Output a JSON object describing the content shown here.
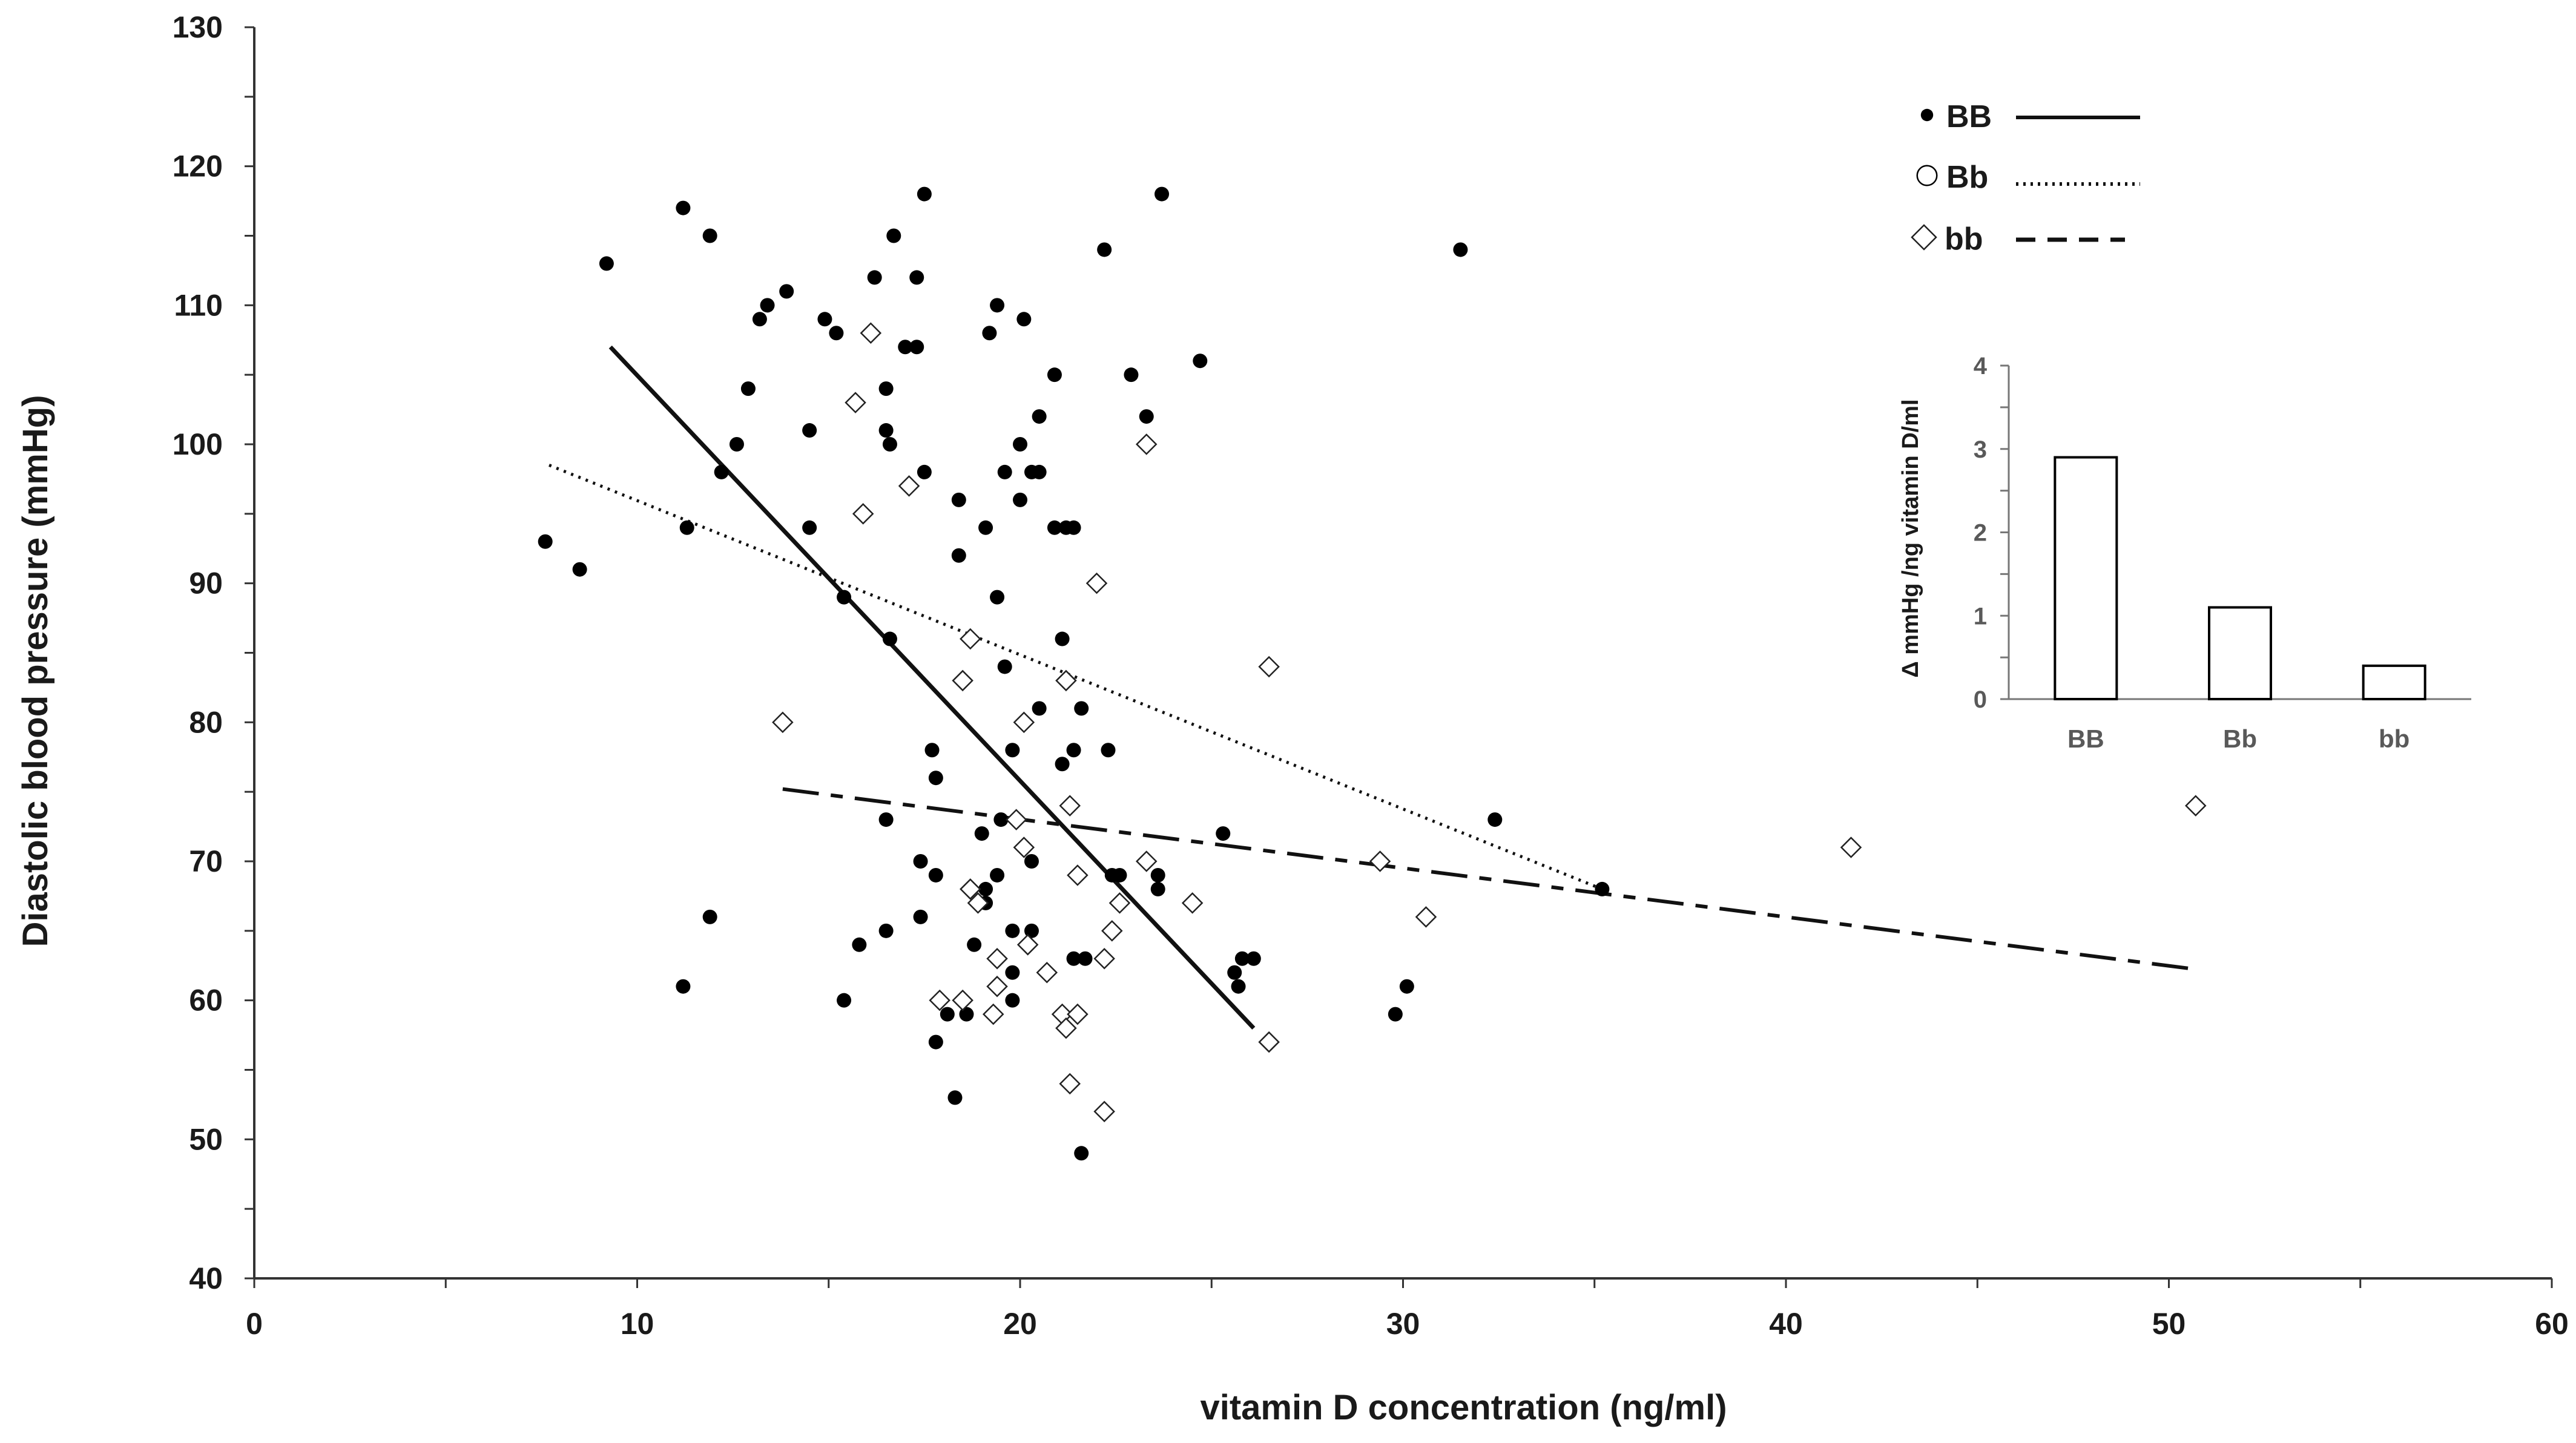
{
  "chart_data": [
    {
      "type": "scatter",
      "title": "",
      "xlabel": "vitamin D concentration (ng/ml)",
      "ylabel": "Diastolic blood pressure (mmHg)",
      "xlim": [
        0,
        60
      ],
      "ylim": [
        40,
        130
      ],
      "xticks": [
        0,
        10,
        20,
        30,
        40,
        50,
        60
      ],
      "xtick_labels": [
        "0",
        "10",
        "20",
        "30",
        "40",
        "50",
        "60"
      ],
      "yticks": [
        40,
        50,
        60,
        70,
        80,
        90,
        100,
        110,
        120,
        130
      ],
      "ytick_labels": [
        "40",
        "50",
        "60",
        "70",
        "80",
        "90",
        "100",
        "110",
        "120",
        "130"
      ],
      "grid": false,
      "legend": {
        "position": "top-right",
        "entries": [
          {
            "label": "BB",
            "marker": "filled-circle",
            "line": "solid"
          },
          {
            "label": "Bb",
            "marker": "open-circle",
            "line": "dotted"
          },
          {
            "label": "bb",
            "marker": "open-diamond",
            "line": "dashed"
          }
        ]
      },
      "series": [
        {
          "name": "BB",
          "marker": "filled-circle",
          "points": [
            [
              7.6,
              93
            ],
            [
              8.5,
              91
            ],
            [
              9.2,
              113
            ],
            [
              11.2,
              117
            ],
            [
              11.3,
              94
            ],
            [
              11.2,
              61
            ],
            [
              11.9,
              115
            ],
            [
              11.9,
              66
            ],
            [
              12.2,
              98
            ],
            [
              12.6,
              100
            ],
            [
              12.9,
              104
            ],
            [
              13.2,
              109
            ],
            [
              13.4,
              110
            ],
            [
              13.9,
              111
            ],
            [
              14.5,
              101
            ],
            [
              14.5,
              94
            ],
            [
              14.9,
              109
            ],
            [
              15.2,
              108
            ],
            [
              15.4,
              89
            ],
            [
              15.4,
              60
            ],
            [
              15.8,
              64
            ],
            [
              16.2,
              112
            ],
            [
              16.5,
              104
            ],
            [
              16.5,
              101
            ],
            [
              16.6,
              100
            ],
            [
              16.6,
              86
            ],
            [
              16.5,
              73
            ],
            [
              16.5,
              65
            ],
            [
              16.7,
              115
            ],
            [
              17.0,
              107
            ],
            [
              17.3,
              107
            ],
            [
              17.3,
              112
            ],
            [
              17.5,
              118
            ],
            [
              17.5,
              98
            ],
            [
              17.4,
              70
            ],
            [
              17.4,
              66
            ],
            [
              17.7,
              78
            ],
            [
              17.8,
              76
            ],
            [
              17.8,
              69
            ],
            [
              17.8,
              57
            ],
            [
              18.1,
              59
            ],
            [
              18.3,
              53
            ],
            [
              18.4,
              96
            ],
            [
              18.4,
              92
            ],
            [
              18.6,
              59
            ],
            [
              18.8,
              64
            ],
            [
              19.0,
              72
            ],
            [
              19.1,
              68
            ],
            [
              19.1,
              67
            ],
            [
              19.2,
              108
            ],
            [
              19.1,
              94
            ],
            [
              19.4,
              110
            ],
            [
              19.4,
              89
            ],
            [
              19.4,
              69
            ],
            [
              19.5,
              73
            ],
            [
              19.6,
              98
            ],
            [
              19.6,
              84
            ],
            [
              19.8,
              78
            ],
            [
              19.8,
              65
            ],
            [
              19.8,
              62
            ],
            [
              19.8,
              60
            ],
            [
              20.0,
              100
            ],
            [
              20.0,
              96
            ],
            [
              20.1,
              109
            ],
            [
              20.3,
              98
            ],
            [
              20.3,
              70
            ],
            [
              20.3,
              65
            ],
            [
              20.5,
              102
            ],
            [
              20.5,
              98
            ],
            [
              20.5,
              81
            ],
            [
              20.9,
              105
            ],
            [
              20.9,
              94
            ],
            [
              21.1,
              86
            ],
            [
              21.1,
              77
            ],
            [
              21.2,
              94
            ],
            [
              21.2,
              83
            ],
            [
              21.4,
              94
            ],
            [
              21.4,
              78
            ],
            [
              21.4,
              63
            ],
            [
              21.6,
              81
            ],
            [
              21.6,
              49
            ],
            [
              21.7,
              63
            ],
            [
              22.2,
              114
            ],
            [
              22.3,
              78
            ],
            [
              22.4,
              69
            ],
            [
              22.6,
              69
            ],
            [
              22.9,
              105
            ],
            [
              23.3,
              102
            ],
            [
              23.6,
              69
            ],
            [
              23.6,
              68
            ],
            [
              23.7,
              118
            ],
            [
              24.7,
              106
            ],
            [
              25.3,
              72
            ],
            [
              25.6,
              62
            ],
            [
              25.7,
              61
            ],
            [
              25.8,
              63
            ],
            [
              26.1,
              63
            ],
            [
              29.8,
              59
            ],
            [
              30.1,
              61
            ],
            [
              31.5,
              114
            ],
            [
              32.4,
              73
            ],
            [
              35.2,
              68
            ]
          ]
        },
        {
          "name": "Bb",
          "marker": "open-circle",
          "points": []
        },
        {
          "name": "bb",
          "marker": "open-diamond",
          "points": [
            [
              13.8,
              80
            ],
            [
              15.7,
              103
            ],
            [
              15.9,
              95
            ],
            [
              16.1,
              108
            ],
            [
              17.1,
              97
            ],
            [
              17.9,
              60
            ],
            [
              18.5,
              83
            ],
            [
              18.5,
              60
            ],
            [
              18.7,
              68
            ],
            [
              18.7,
              86
            ],
            [
              18.9,
              67
            ],
            [
              19.3,
              59
            ],
            [
              19.4,
              63
            ],
            [
              19.4,
              61
            ],
            [
              19.9,
              73
            ],
            [
              20.1,
              80
            ],
            [
              20.1,
              71
            ],
            [
              20.2,
              64
            ],
            [
              20.7,
              62
            ],
            [
              21.1,
              59
            ],
            [
              21.2,
              83
            ],
            [
              21.2,
              58
            ],
            [
              21.3,
              74
            ],
            [
              21.3,
              54
            ],
            [
              21.5,
              69
            ],
            [
              21.5,
              59
            ],
            [
              22.0,
              90
            ],
            [
              22.2,
              63
            ],
            [
              22.2,
              52
            ],
            [
              22.4,
              65
            ],
            [
              22.6,
              67
            ],
            [
              23.3,
              100
            ],
            [
              23.3,
              70
            ],
            [
              24.5,
              67
            ],
            [
              26.5,
              84
            ],
            [
              26.5,
              57
            ],
            [
              29.4,
              70
            ],
            [
              30.6,
              66
            ],
            [
              41.7,
              71
            ],
            [
              50.7,
              74
            ]
          ]
        }
      ],
      "trendlines": [
        {
          "name": "BB",
          "style": "solid",
          "x": [
            9.3,
            26.1
          ],
          "y": [
            107,
            58
          ]
        },
        {
          "name": "Bb",
          "style": "dotted",
          "x": [
            7.7,
            35.2
          ],
          "y": [
            98.5,
            68
          ]
        },
        {
          "name": "bb",
          "style": "dashed",
          "x": [
            13.8,
            50.8
          ],
          "y": [
            75.2,
            62.2
          ]
        }
      ]
    },
    {
      "type": "bar",
      "title": "",
      "xlabel": "",
      "ylabel": "Δ mmHg /ng vitamin D/ml",
      "ylim": [
        0,
        4
      ],
      "yticks": [
        0,
        1,
        2,
        3,
        4
      ],
      "ytick_labels": [
        "0",
        "1",
        "2",
        "3",
        "4"
      ],
      "grid": false,
      "categories": [
        "BB",
        "Bb",
        "bb"
      ],
      "values": [
        2.9,
        1.1,
        0.4
      ]
    }
  ]
}
